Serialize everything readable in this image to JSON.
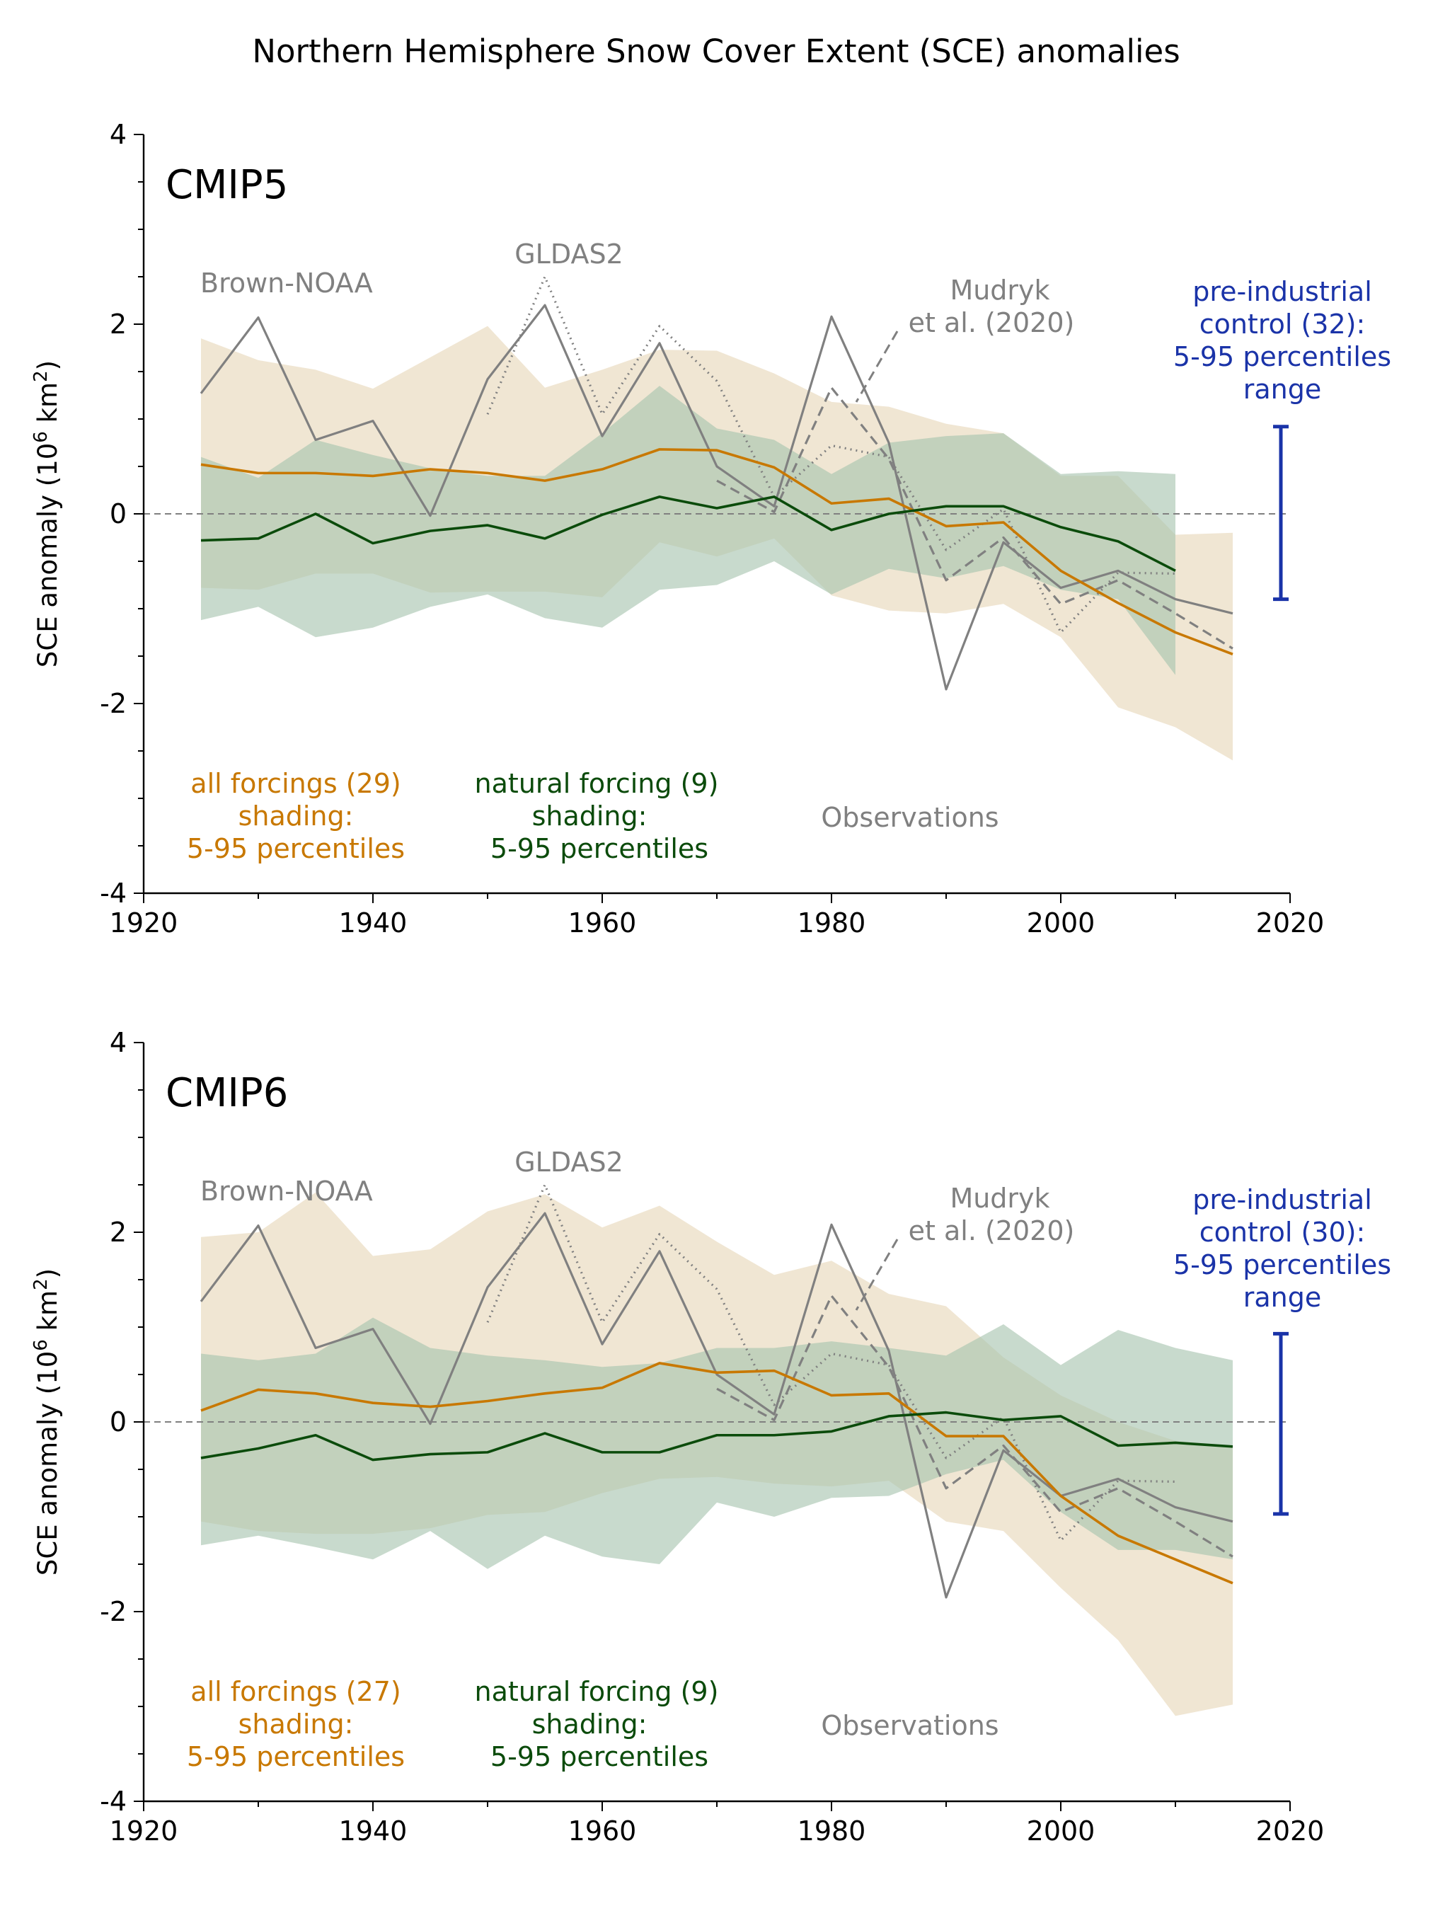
{
  "title": "Northern Hemisphere Snow Cover Extent (SCE) anomalies",
  "colors": {
    "all_forcing": "#C87800",
    "all_forcing_shade": "#E6D6B8",
    "natural_forcing": "#0B4B0B",
    "natural_forcing_shade": "#A7C3AF",
    "observations": "#808080",
    "control": "#1A33A8",
    "zero_line": "#808080"
  },
  "chart_data": [
    {
      "type": "line",
      "panel_label": "CMIP5",
      "ylabel_text": "SCE anomaly (10",
      "ylabel_sup": "6",
      "ylabel_unit": " km",
      "ylabel_sup2": "2",
      "ylabel_close": ")",
      "xlim": [
        1920,
        2020
      ],
      "ylim": [
        -4,
        4
      ],
      "x_ticks": [
        1920,
        1940,
        1960,
        1980,
        2000,
        2020
      ],
      "y_ticks": [
        -4,
        -2,
        0,
        2,
        4
      ],
      "zero_line": "dashed",
      "x": [
        1925,
        1930,
        1935,
        1940,
        1945,
        1950,
        1955,
        1960,
        1965,
        1970,
        1975,
        1980,
        1985,
        1990,
        1995,
        2000,
        2005,
        2010,
        2015
      ],
      "all_forcing": {
        "name": "all forcings (29)",
        "shading_label": "shading:",
        "percentile_label": "5-95 percentiles",
        "mean": [
          0.52,
          0.43,
          0.43,
          0.4,
          0.47,
          0.43,
          0.35,
          0.47,
          0.68,
          0.67,
          0.49,
          0.11,
          0.16,
          -0.13,
          -0.09,
          -0.6,
          -0.94,
          -1.25,
          -1.48
        ],
        "upper": [
          1.85,
          1.62,
          1.52,
          1.32,
          1.65,
          1.98,
          1.33,
          1.52,
          1.73,
          1.72,
          1.48,
          1.18,
          1.13,
          0.95,
          0.85,
          0.4,
          0.4,
          -0.22,
          -0.2
        ],
        "lower": [
          -0.78,
          -0.8,
          -0.63,
          -0.63,
          -0.83,
          -0.82,
          -0.82,
          -0.88,
          -0.3,
          -0.45,
          -0.26,
          -0.86,
          -1.02,
          -1.05,
          -0.95,
          -1.3,
          -2.04,
          -2.25,
          -2.6
        ]
      },
      "natural_forcing": {
        "name": "natural forcing (9)",
        "shading_label": "shading:",
        "percentile_label": "5-95 percentiles",
        "mean": [
          -0.28,
          -0.26,
          0.0,
          -0.31,
          -0.18,
          -0.12,
          -0.26,
          -0.01,
          0.18,
          0.06,
          0.18,
          -0.17,
          0.0,
          0.08,
          0.08,
          -0.14,
          -0.29,
          -0.6,
          null
        ],
        "upper": [
          0.6,
          0.38,
          0.78,
          0.62,
          0.48,
          0.4,
          0.4,
          0.85,
          1.35,
          0.9,
          0.78,
          0.42,
          0.75,
          0.82,
          0.85,
          0.42,
          0.45,
          0.42,
          null
        ],
        "lower": [
          -1.12,
          -0.98,
          -1.3,
          -1.2,
          -0.98,
          -0.85,
          -1.1,
          -1.2,
          -0.8,
          -0.75,
          -0.5,
          -0.85,
          -0.58,
          -0.68,
          -0.55,
          -0.8,
          -0.9,
          -1.7,
          null
        ]
      },
      "observations": {
        "group_label": "Observations",
        "series": [
          {
            "name": "Brown-NOAA",
            "style": "solid",
            "x": [
              1925,
              1930,
              1935,
              1940,
              1945,
              1950,
              1955,
              1960,
              1965,
              1970,
              1975,
              1980,
              1985,
              1990,
              1995,
              2000,
              2005,
              2010,
              2015
            ],
            "y": [
              1.27,
              2.07,
              0.78,
              0.98,
              -0.02,
              1.42,
              2.2,
              0.82,
              1.8,
              0.5,
              0.08,
              2.08,
              0.75,
              -1.85,
              -0.3,
              -0.78,
              -0.6,
              -0.9,
              -1.05
            ]
          },
          {
            "name": "GLDAS2",
            "style": "dotted",
            "x": [
              1950,
              1955,
              1960,
              1965,
              1970,
              1975,
              1980,
              1985,
              1990,
              1995,
              2000,
              2005,
              2010
            ],
            "y": [
              1.05,
              2.5,
              1.05,
              1.98,
              1.4,
              0.18,
              0.72,
              0.6,
              -0.38,
              0.05,
              -1.25,
              -0.62,
              -0.63
            ]
          },
          {
            "name_line1": "Mudryk",
            "name_line2": "et al. (2020)",
            "style": "dashed",
            "x": [
              1970,
              1975,
              1980,
              1985,
              1990,
              1995,
              2000,
              2005,
              2010,
              2015
            ],
            "y": [
              0.35,
              0.02,
              1.33,
              0.58,
              -0.7,
              -0.25,
              -0.95,
              -0.7,
              -1.05,
              -1.42
            ]
          }
        ]
      },
      "control": {
        "line1": "pre-industrial",
        "line2": "control (32):",
        "line3": "5-95 percentiles",
        "line4": "range",
        "upper": 0.92,
        "lower": -0.9
      }
    },
    {
      "type": "line",
      "panel_label": "CMIP6",
      "ylabel_text": "SCE anomaly (10",
      "ylabel_sup": "6",
      "ylabel_unit": " km",
      "ylabel_sup2": "2",
      "ylabel_close": ")",
      "xlim": [
        1920,
        2020
      ],
      "ylim": [
        -4,
        4
      ],
      "x_ticks": [
        1920,
        1940,
        1960,
        1980,
        2000,
        2020
      ],
      "y_ticks": [
        -4,
        -2,
        0,
        2,
        4
      ],
      "zero_line": "dashed",
      "x": [
        1925,
        1930,
        1935,
        1940,
        1945,
        1950,
        1955,
        1960,
        1965,
        1970,
        1975,
        1980,
        1985,
        1990,
        1995,
        2000,
        2005,
        2010,
        2015
      ],
      "all_forcing": {
        "name": "all forcings (27)",
        "shading_label": "shading:",
        "percentile_label": "5-95 percentiles",
        "mean": [
          0.12,
          0.34,
          0.3,
          0.2,
          0.16,
          0.22,
          0.3,
          0.36,
          0.62,
          0.52,
          0.54,
          0.28,
          0.3,
          -0.15,
          -0.15,
          -0.78,
          -1.2,
          -1.45,
          -1.7
        ],
        "upper": [
          1.95,
          2.0,
          2.42,
          1.75,
          1.82,
          2.22,
          2.4,
          2.05,
          2.28,
          1.9,
          1.55,
          1.7,
          1.35,
          1.22,
          0.68,
          0.28,
          0.0,
          -0.2,
          -0.25
        ],
        "lower": [
          -1.05,
          -1.15,
          -1.18,
          -1.18,
          -1.12,
          -0.98,
          -0.95,
          -0.75,
          -0.6,
          -0.58,
          -0.65,
          -0.68,
          -0.62,
          -1.05,
          -1.15,
          -1.75,
          -2.3,
          -3.1,
          -2.98
        ]
      },
      "natural_forcing": {
        "name": "natural forcing (9)",
        "shading_label": "shading:",
        "percentile_label": "5-95 percentiles",
        "mean": [
          -0.38,
          -0.28,
          -0.14,
          -0.4,
          -0.34,
          -0.32,
          -0.12,
          -0.32,
          -0.32,
          -0.14,
          -0.14,
          -0.1,
          0.06,
          0.1,
          0.02,
          0.06,
          -0.25,
          -0.22,
          -0.26
        ],
        "upper": [
          0.72,
          0.65,
          0.72,
          1.1,
          0.78,
          0.7,
          0.65,
          0.58,
          0.62,
          0.78,
          0.78,
          0.85,
          0.78,
          0.7,
          1.03,
          0.6,
          0.97,
          0.78,
          0.65
        ],
        "lower": [
          -1.3,
          -1.2,
          -1.32,
          -1.45,
          -1.15,
          -1.55,
          -1.2,
          -1.42,
          -1.5,
          -0.85,
          -1.0,
          -0.8,
          -0.78,
          -0.55,
          -0.4,
          -0.95,
          -1.35,
          -1.35,
          -1.45
        ]
      },
      "observations": {
        "group_label": "Observations",
        "series": [
          {
            "name": "Brown-NOAA",
            "style": "solid",
            "x": [
              1925,
              1930,
              1935,
              1940,
              1945,
              1950,
              1955,
              1960,
              1965,
              1970,
              1975,
              1980,
              1985,
              1990,
              1995,
              2000,
              2005,
              2010,
              2015
            ],
            "y": [
              1.27,
              2.07,
              0.78,
              0.98,
              -0.02,
              1.42,
              2.2,
              0.82,
              1.8,
              0.5,
              0.08,
              2.08,
              0.75,
              -1.85,
              -0.3,
              -0.78,
              -0.6,
              -0.9,
              -1.05
            ]
          },
          {
            "name": "GLDAS2",
            "style": "dotted",
            "x": [
              1950,
              1955,
              1960,
              1965,
              1970,
              1975,
              1980,
              1985,
              1990,
              1995,
              2000,
              2005,
              2010
            ],
            "y": [
              1.05,
              2.5,
              1.05,
              1.98,
              1.4,
              0.18,
              0.72,
              0.6,
              -0.38,
              0.05,
              -1.25,
              -0.62,
              -0.63
            ]
          },
          {
            "name_line1": "Mudryk",
            "name_line2": "et al. (2020)",
            "style": "dashed",
            "x": [
              1970,
              1975,
              1980,
              1985,
              1990,
              1995,
              2000,
              2005,
              2010,
              2015
            ],
            "y": [
              0.35,
              0.02,
              1.33,
              0.58,
              -0.7,
              -0.25,
              -0.95,
              -0.7,
              -1.05,
              -1.42
            ]
          }
        ]
      },
      "control": {
        "line1": "pre-industrial",
        "line2": "control (30):",
        "line3": "5-95 percentiles",
        "line4": "range",
        "upper": 0.93,
        "lower": -0.97
      }
    }
  ]
}
